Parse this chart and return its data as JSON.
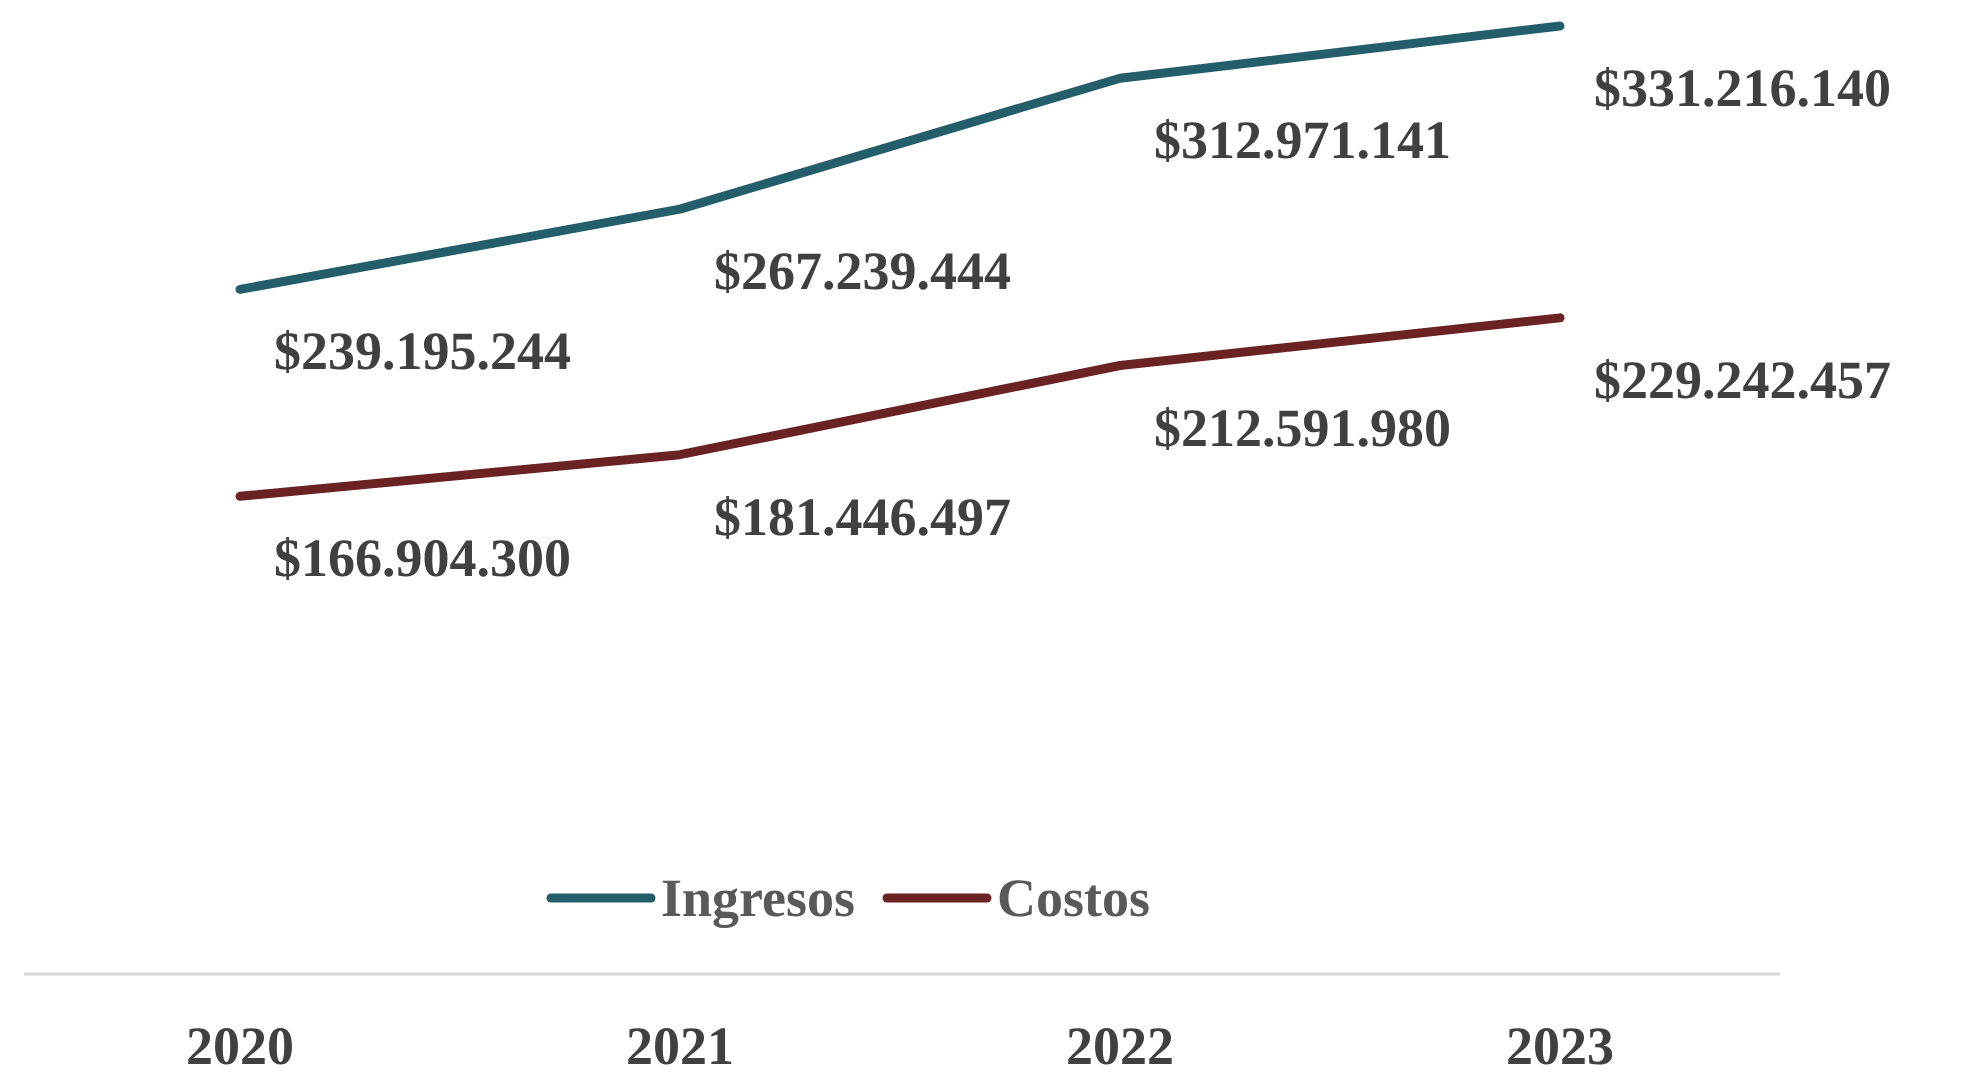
{
  "chart_data": {
    "type": "line",
    "categories": [
      "2020",
      "2021",
      "2022",
      "2023"
    ],
    "series": [
      {
        "name": "Ingresos",
        "color": "#255e6b",
        "values": [
          239195244,
          267239444,
          312971141,
          331216140
        ],
        "value_labels": [
          "$239.195.244",
          "$267.239.444",
          "$312.971.141",
          "$331.216.140"
        ]
      },
      {
        "name": "Costos",
        "color": "#6b2222",
        "values": [
          166904300,
          181446497,
          212591980,
          229242457
        ],
        "value_labels": [
          "$166.904.300",
          "$181.446.497",
          "$212.591.980",
          "$229.242.457"
        ]
      }
    ],
    "legend": "bottom",
    "grid": false,
    "marker": "none",
    "line_style": "solid"
  }
}
